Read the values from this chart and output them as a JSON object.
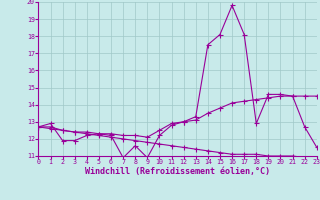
{
  "xlabel": "Windchill (Refroidissement éolien,°C)",
  "x": [
    0,
    1,
    2,
    3,
    4,
    5,
    6,
    7,
    8,
    9,
    10,
    11,
    12,
    13,
    14,
    15,
    16,
    17,
    18,
    19,
    20,
    21,
    22,
    23
  ],
  "line1": [
    12.7,
    12.9,
    11.9,
    11.9,
    12.2,
    12.3,
    12.2,
    10.9,
    11.6,
    10.9,
    12.2,
    12.8,
    13.0,
    13.3,
    17.5,
    18.1,
    19.8,
    18.1,
    12.9,
    14.6,
    14.6,
    14.5,
    12.7,
    11.5
  ],
  "line2": [
    12.7,
    12.7,
    12.5,
    12.4,
    12.4,
    12.3,
    12.3,
    12.2,
    12.2,
    12.1,
    12.5,
    12.9,
    13.0,
    13.1,
    13.5,
    13.8,
    14.1,
    14.2,
    14.3,
    14.4,
    14.5,
    14.5,
    14.5,
    14.5
  ],
  "line3": [
    12.7,
    12.6,
    12.5,
    12.4,
    12.3,
    12.2,
    12.1,
    12.0,
    11.9,
    11.8,
    11.7,
    11.6,
    11.5,
    11.4,
    11.3,
    11.2,
    11.1,
    11.1,
    11.1,
    11.0,
    11.0,
    11.0,
    10.9,
    10.9
  ],
  "line_color": "#990099",
  "bg_color": "#c8eaea",
  "grid_color": "#a0c8c8",
  "ylim": [
    11,
    20
  ],
  "yticks": [
    11,
    12,
    13,
    14,
    15,
    16,
    17,
    18,
    19,
    20
  ],
  "xticks": [
    0,
    1,
    2,
    3,
    4,
    5,
    6,
    7,
    8,
    9,
    10,
    11,
    12,
    13,
    14,
    15,
    16,
    17,
    18,
    19,
    20,
    21,
    22,
    23
  ],
  "tick_fontsize": 4.8,
  "xlabel_fontsize": 6.0,
  "marker": "D",
  "marker_size": 1.8,
  "linewidth": 0.8
}
